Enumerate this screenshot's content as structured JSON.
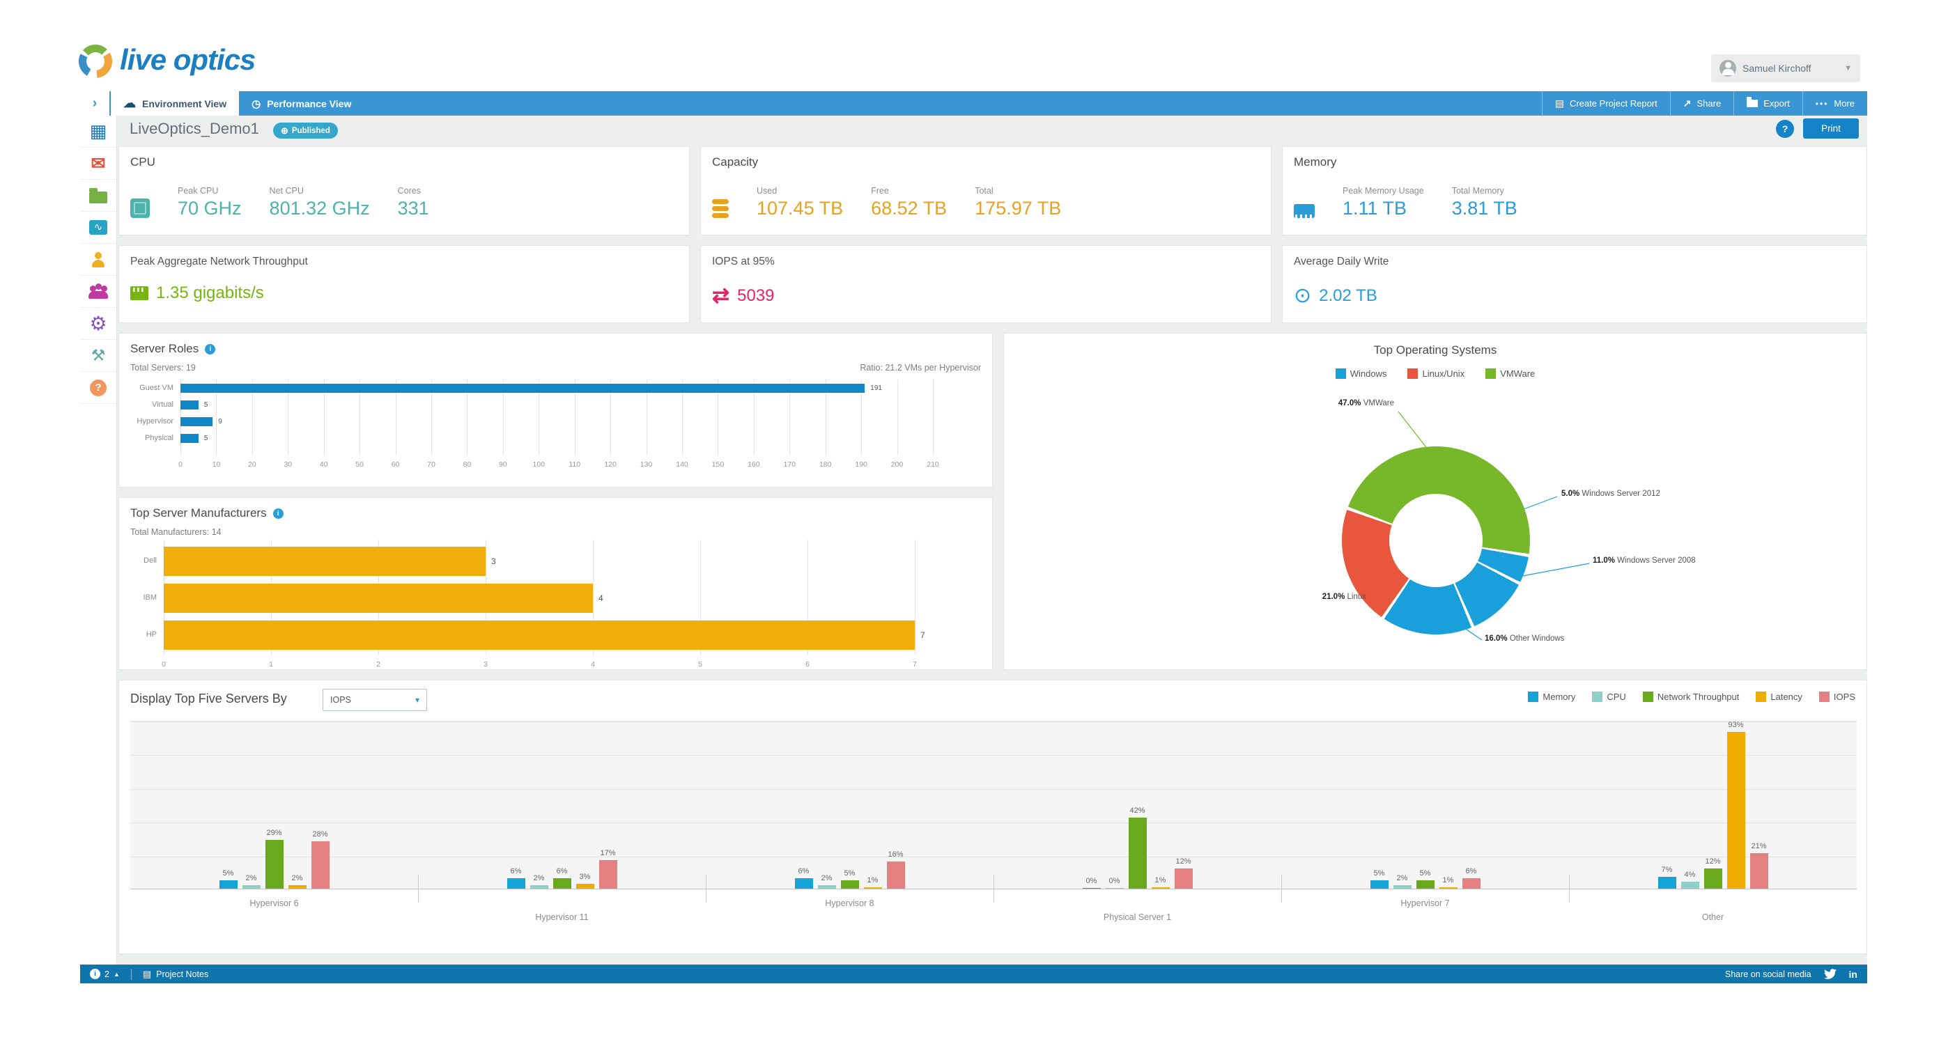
{
  "brand": {
    "logo_text": "live optics",
    "logo_color": "#1b7fc2"
  },
  "user_menu": {
    "name": "Samuel Kirchoff"
  },
  "nav": {
    "tabs": [
      {
        "label": "Environment View",
        "icon": "cloud-icon",
        "active": true
      },
      {
        "label": "Performance View",
        "icon": "gauge-icon",
        "active": false
      }
    ],
    "actions": [
      {
        "label": "Create Project Report",
        "icon": "document-icon"
      },
      {
        "label": "Share",
        "icon": "share-icon"
      },
      {
        "label": "Export",
        "icon": "folder-icon"
      },
      {
        "label": "More",
        "icon": "ellipsis-icon"
      }
    ]
  },
  "sidebar": {
    "items": [
      {
        "name": "dashboard",
        "color": "#1d79b8"
      },
      {
        "name": "mail",
        "color": "#e8503a"
      },
      {
        "name": "projects",
        "color": "#76b043"
      },
      {
        "name": "monitor",
        "color": "#29a3c4"
      },
      {
        "name": "profile",
        "color": "#efaf21"
      },
      {
        "name": "team",
        "color": "#bf3a9e"
      },
      {
        "name": "settings",
        "color": "#8e4ec6"
      },
      {
        "name": "tools",
        "color": "#63a7ad"
      },
      {
        "name": "help",
        "color": "#f2955e"
      }
    ]
  },
  "page": {
    "title": "LiveOptics_Demo1",
    "badge": "Published",
    "help_label": "?",
    "print_label": "Print"
  },
  "summary": {
    "cpu": {
      "title": "CPU",
      "color": "#4cb2ac",
      "metrics": [
        {
          "label": "Peak CPU",
          "value": "70 GHz"
        },
        {
          "label": "Net CPU",
          "value": "801.32 GHz"
        },
        {
          "label": "Cores",
          "value": "331"
        }
      ]
    },
    "capacity": {
      "title": "Capacity",
      "color": "#e8a21f",
      "metrics": [
        {
          "label": "Used",
          "value": "107.45 TB"
        },
        {
          "label": "Free",
          "value": "68.52 TB"
        },
        {
          "label": "Total",
          "value": "175.97 TB"
        }
      ]
    },
    "memory": {
      "title": "Memory",
      "color": "#2b9cd8",
      "metrics": [
        {
          "label": "Peak Memory Usage",
          "value": "1.11 TB"
        },
        {
          "label": "Total Memory",
          "value": "3.81 TB"
        }
      ]
    },
    "network": {
      "title": "Peak Aggregate Network Throughput",
      "color": "#76b510",
      "value": "1.35 gigabits/s"
    },
    "iops": {
      "title": "IOPS at 95%",
      "color": "#e12766",
      "value": "5039"
    },
    "daily_write": {
      "title": "Average Daily Write",
      "color": "#2b9cd8",
      "value": "2.02 TB"
    }
  },
  "footer": {
    "notes_count": "2",
    "project_notes_label": "Project Notes",
    "share_label": "Share on social media"
  },
  "chart_data": [
    {
      "type": "bar",
      "orientation": "horizontal",
      "title": "Server Roles",
      "total_label": "Total Servers: 19",
      "ratio_label": "Ratio: 21.2 VMs per Hypervisor",
      "categories": [
        "Guest VM",
        "Virtual",
        "Hypervisor",
        "Physical"
      ],
      "values": [
        191,
        5,
        9,
        5
      ],
      "xlim": [
        0,
        210
      ],
      "xtick_step": 10,
      "bar_color": "#1287c8",
      "grid": true
    },
    {
      "type": "bar",
      "orientation": "horizontal",
      "title": "Top Server Manufacturers",
      "total_label": "Total Manufacturers: 14",
      "categories": [
        "Dell",
        "IBM",
        "HP"
      ],
      "values": [
        3,
        4,
        7
      ],
      "xlim": [
        0,
        7.5
      ],
      "xtick_step": 1,
      "xtick_max": 7,
      "bar_color": "#f0ad0c",
      "grid": true
    },
    {
      "type": "pie",
      "donut": true,
      "title": "Top Operating Systems",
      "legend": [
        {
          "label": "Windows",
          "color": "#199fd9"
        },
        {
          "label": "Linux/Unix",
          "color": "#e8563d"
        },
        {
          "label": "VMWare",
          "color": "#77b82a"
        }
      ],
      "start_angle_deg": 291,
      "slices": [
        {
          "label": "VMWare",
          "pct": 47.0,
          "color": "#77b82a"
        },
        {
          "label": "Windows Server 2012",
          "pct": 5.0,
          "color": "#199fd9"
        },
        {
          "label": "Windows Server 2008",
          "pct": 11.0,
          "color": "#199fd9"
        },
        {
          "label": "Other Windows",
          "pct": 16.0,
          "color": "#199fd9"
        },
        {
          "label": "Linux",
          "pct": 21.0,
          "color": "#e8563d"
        }
      ]
    },
    {
      "type": "bar",
      "grouped": true,
      "title": "Display Top Five Servers By",
      "selector_value": "IOPS",
      "unit": "%",
      "ylim": [
        0,
        100
      ],
      "grid": true,
      "legend_position": "top-right",
      "categories": [
        "Hypervisor 6",
        "Hypervisor 11",
        "Hypervisor 8",
        "Physical Server 1",
        "Hypervisor 7",
        "Other"
      ],
      "series": [
        {
          "name": "Memory",
          "color": "#16a3d8",
          "values": [
            5,
            6,
            6,
            0,
            5,
            7
          ]
        },
        {
          "name": "CPU",
          "color": "#8fd0ca",
          "values": [
            2,
            2,
            2,
            0,
            2,
            4
          ]
        },
        {
          "name": "Network Throughput",
          "color": "#6aa81e",
          "values": [
            29,
            6,
            5,
            42,
            5,
            12
          ]
        },
        {
          "name": "Latency",
          "color": "#f0ad00",
          "values": [
            2,
            3,
            1,
            1,
            1,
            93
          ]
        },
        {
          "name": "IOPS",
          "color": "#e58080",
          "values": [
            28,
            17,
            16,
            12,
            6,
            21
          ]
        }
      ]
    }
  ]
}
